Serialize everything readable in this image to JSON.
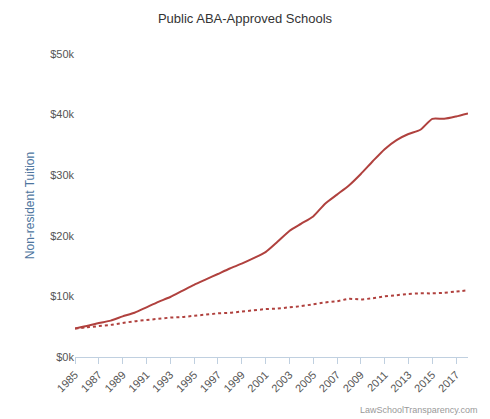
{
  "chart_data": {
    "type": "line",
    "title": "Public ABA-Approved Schools",
    "y_label": "Non-resident Tuition",
    "source": "LawSchoolTransparency.com",
    "x": [
      1985,
      1986,
      1987,
      1988,
      1989,
      1990,
      1991,
      1992,
      1993,
      1994,
      1995,
      1996,
      1997,
      1998,
      1999,
      2000,
      2001,
      2002,
      2003,
      2004,
      2005,
      2006,
      2007,
      2008,
      2009,
      2010,
      2011,
      2012,
      2013,
      2014,
      2015,
      2016,
      2017,
      2018
    ],
    "series": [
      {
        "color": "#b0413e",
        "line_style": "solid",
        "values": [
          4700,
          5100,
          5600,
          6000,
          6700,
          7300,
          8200,
          9100,
          9900,
          10900,
          11900,
          12800,
          13700,
          14600,
          15400,
          16300,
          17300,
          19000,
          20800,
          22000,
          23200,
          25300,
          26800,
          28300,
          30200,
          32300,
          34300,
          35800,
          36800,
          37500,
          39300,
          39300,
          39700,
          40200
        ]
      },
      {
        "color": "#b0413e",
        "line_style": "dotted",
        "values": [
          4700,
          4900,
          5100,
          5300,
          5600,
          5900,
          6100,
          6300,
          6500,
          6600,
          6800,
          7000,
          7200,
          7300,
          7500,
          7700,
          7900,
          8000,
          8200,
          8400,
          8700,
          9000,
          9200,
          9600,
          9500,
          9700,
          10000,
          10200,
          10400,
          10500,
          10500,
          10600,
          10800,
          11000
        ]
      }
    ],
    "xlim": [
      1985,
      2018
    ],
    "xticks": [
      1985,
      1987,
      1989,
      1991,
      1993,
      1995,
      1997,
      1999,
      2001,
      2003,
      2005,
      2007,
      2009,
      2011,
      2013,
      2015,
      2017
    ],
    "ylim": [
      0,
      50000
    ],
    "yticks": [
      {
        "value": 0,
        "label": "$0k"
      },
      {
        "value": 10000,
        "label": "$10k"
      },
      {
        "value": 20000,
        "label": "$20k"
      },
      {
        "value": 30000,
        "label": "$30k"
      },
      {
        "value": 40000,
        "label": "$40k"
      },
      {
        "value": 50000,
        "label": "$50k"
      }
    ],
    "grid": false
  }
}
